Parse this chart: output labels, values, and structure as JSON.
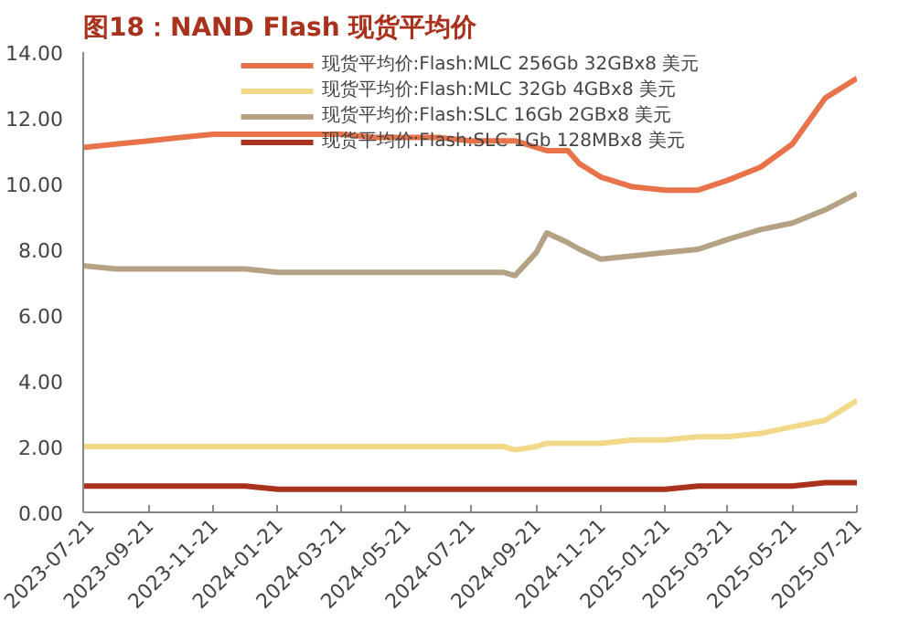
{
  "chart_data": {
    "type": "line",
    "title": "图18：NAND Flash 现货平均价",
    "xlim": [
      "2023-07-21",
      "2025-07-21"
    ],
    "xticks": [
      "2023-07-21",
      "2023-09-21",
      "2023-11-21",
      "2024-01-21",
      "2024-03-21",
      "2024-05-21",
      "2024-07-21",
      "2024-09-21",
      "2024-11-21",
      "2025-01-21",
      "2025-03-21",
      "2025-05-21",
      "2025-07-21"
    ],
    "ylim": [
      0,
      14
    ],
    "yticks": [
      {
        "value": 0,
        "label": "0.00"
      },
      {
        "value": 2,
        "label": "2.00"
      },
      {
        "value": 4,
        "label": "4.00"
      },
      {
        "value": 6,
        "label": "6.00"
      },
      {
        "value": 8,
        "label": "8.00"
      },
      {
        "value": 10,
        "label": "10.00"
      },
      {
        "value": 12,
        "label": "12.00"
      },
      {
        "value": 14,
        "label": "14.00"
      }
    ],
    "x": [
      "2023-07-21",
      "2023-08-21",
      "2023-09-21",
      "2023-10-21",
      "2023-11-21",
      "2023-12-21",
      "2024-01-21",
      "2024-02-21",
      "2024-03-21",
      "2024-04-21",
      "2024-05-21",
      "2024-06-21",
      "2024-07-21",
      "2024-08-21",
      "2024-09-01",
      "2024-09-21",
      "2024-10-01",
      "2024-10-21",
      "2024-11-01",
      "2024-11-21",
      "2024-12-21",
      "2025-01-21",
      "2025-02-21",
      "2025-03-21",
      "2025-04-21",
      "2025-05-21",
      "2025-06-21",
      "2025-07-21"
    ],
    "series": [
      {
        "name": "现货平均价:Flash:MLC 256Gb 32GBx8 美元",
        "color": "#e8734a",
        "values": [
          11.1,
          11.2,
          11.3,
          11.4,
          11.5,
          11.5,
          11.5,
          11.5,
          11.5,
          11.4,
          11.4,
          11.4,
          11.3,
          11.3,
          11.3,
          11.1,
          11.0,
          11.0,
          10.6,
          10.2,
          9.9,
          9.8,
          9.8,
          10.1,
          10.5,
          11.2,
          12.6,
          13.2
        ]
      },
      {
        "name": "现货平均价:Flash:MLC 32Gb 4GBx8 美元",
        "color": "#f2d98a",
        "values": [
          2.0,
          2.0,
          2.0,
          2.0,
          2.0,
          2.0,
          2.0,
          2.0,
          2.0,
          2.0,
          2.0,
          2.0,
          2.0,
          2.0,
          1.9,
          2.0,
          2.1,
          2.1,
          2.1,
          2.1,
          2.2,
          2.2,
          2.3,
          2.3,
          2.4,
          2.6,
          2.8,
          3.4
        ]
      },
      {
        "name": "现货平均价:Flash:SLC 16Gb 2GBx8 美元",
        "color": "#b5a184",
        "values": [
          7.5,
          7.4,
          7.4,
          7.4,
          7.4,
          7.4,
          7.3,
          7.3,
          7.3,
          7.3,
          7.3,
          7.3,
          7.3,
          7.3,
          7.2,
          7.9,
          8.5,
          8.2,
          8.0,
          7.7,
          7.8,
          7.9,
          8.0,
          8.3,
          8.6,
          8.8,
          9.2,
          9.7
        ]
      },
      {
        "name": "现货平均价:Flash:SLC 1Gb 128MBx8 美元",
        "color": "#a8321c",
        "values": [
          0.8,
          0.8,
          0.8,
          0.8,
          0.8,
          0.8,
          0.7,
          0.7,
          0.7,
          0.7,
          0.7,
          0.7,
          0.7,
          0.7,
          0.7,
          0.7,
          0.7,
          0.7,
          0.7,
          0.7,
          0.7,
          0.7,
          0.8,
          0.8,
          0.8,
          0.8,
          0.9,
          0.9
        ]
      }
    ],
    "legend": "top",
    "grid": false,
    "line_style": "solid",
    "marker": "none"
  }
}
